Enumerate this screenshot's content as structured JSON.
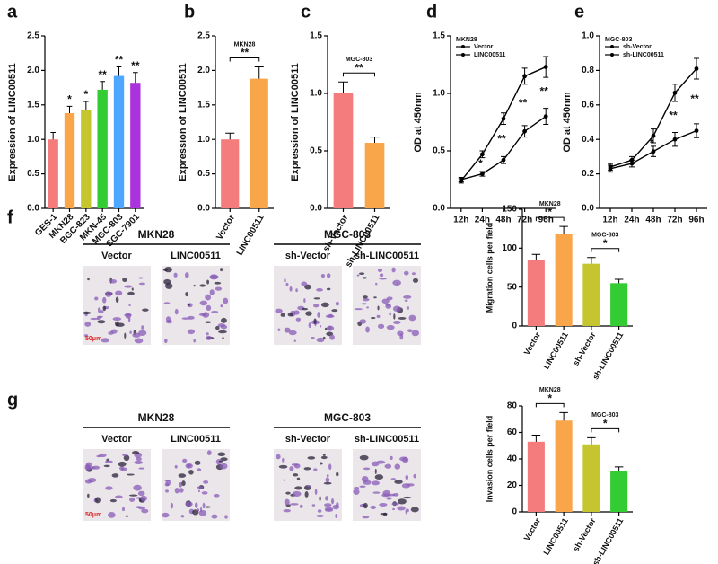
{
  "chart_data": [
    {
      "type": "bar",
      "label": "a",
      "ylabel": "Expression of LINC00511",
      "categories": [
        "GES-1",
        "MKN28",
        "BGC-823",
        "MKN-45",
        "MGC-803",
        "SGC-7901"
      ],
      "values": [
        1.0,
        1.38,
        1.43,
        1.72,
        1.92,
        1.82
      ],
      "errors": [
        0.1,
        0.1,
        0.12,
        0.12,
        0.13,
        0.15
      ],
      "colors": [
        "#f47c7c",
        "#f9a54a",
        "#c5c530",
        "#33cc33",
        "#4da6ff",
        "#aa33dd"
      ],
      "annotations": [
        null,
        "*",
        "*",
        "**",
        "**",
        "**"
      ],
      "ylim": [
        0,
        2.5
      ],
      "yticks": [
        {
          "value": 0,
          "label": "0.0"
        },
        0.5,
        {
          "value": 1,
          "label": "1.0"
        },
        1.5,
        {
          "value": 2,
          "label": "2.0"
        },
        2.5
      ]
    },
    {
      "type": "bar",
      "label": "b",
      "ylabel": "Expression of LINC00511",
      "categories": [
        "Vector",
        "LINC00511"
      ],
      "values": [
        1.0,
        1.88
      ],
      "errors": [
        0.09,
        0.17
      ],
      "colors": [
        "#f47c7c",
        "#f9a54a"
      ],
      "brackets": [
        {
          "label": "MKN28",
          "mark": "**"
        }
      ],
      "ylim": [
        0,
        2.5
      ],
      "yticks": [
        {
          "value": 0,
          "label": "0.0"
        },
        0.5,
        {
          "value": 1,
          "label": "1.0"
        },
        1.5,
        {
          "value": 2,
          "label": "2.0"
        },
        2.5
      ]
    },
    {
      "type": "bar",
      "label": "c",
      "ylabel": "Expression of LINC00511",
      "categories": [
        "sh-Vector",
        "sh-LINC00511"
      ],
      "values": [
        1.0,
        0.57
      ],
      "errors": [
        0.1,
        0.05
      ],
      "colors": [
        "#f47c7c",
        "#f9a54a"
      ],
      "brackets": [
        {
          "label": "MGC-803",
          "mark": "**"
        }
      ],
      "ylim": [
        0,
        1.5
      ],
      "yticks": [
        {
          "value": 0,
          "label": "0.0"
        },
        0.5,
        {
          "value": 1,
          "label": "1.0"
        },
        1.5
      ]
    },
    {
      "type": "line",
      "label": "d",
      "ylabel": "OD at 450nm",
      "legend_title": "MKN28",
      "categories": [
        "12h",
        "24h",
        "48h",
        "72h",
        "96h"
      ],
      "series": [
        {
          "name": "Vector",
          "color": "#000000",
          "values": [
            0.25,
            0.3,
            0.42,
            0.67,
            0.8
          ],
          "errors": [
            0.02,
            0.02,
            0.03,
            0.05,
            0.07
          ]
        },
        {
          "name": "LINC00511",
          "color": "#000000",
          "values": [
            0.24,
            0.47,
            0.78,
            1.15,
            1.23
          ],
          "errors": [
            0.02,
            0.03,
            0.05,
            0.07,
            0.09
          ]
        }
      ],
      "annotations": [
        null,
        "*",
        "**",
        "**",
        "**"
      ],
      "ylim": [
        0,
        1.5
      ],
      "yticks": [
        {
          "value": 0,
          "label": "0.0"
        },
        0.5,
        {
          "value": 1,
          "label": "1.0"
        },
        1.5
      ]
    },
    {
      "type": "line",
      "label": "e",
      "ylabel": "OD at 450nm",
      "legend_title": "MGC-803",
      "categories": [
        "12h",
        "24h",
        "48h",
        "72h",
        "96h"
      ],
      "series": [
        {
          "name": "sh-Vector",
          "color": "#000000",
          "values": [
            0.24,
            0.28,
            0.42,
            0.67,
            0.81
          ],
          "errors": [
            0.02,
            0.02,
            0.04,
            0.05,
            0.06
          ]
        },
        {
          "name": "sh-LINC00511",
          "color": "#000000",
          "values": [
            0.23,
            0.26,
            0.33,
            0.4,
            0.45
          ],
          "errors": [
            0.02,
            0.02,
            0.03,
            0.04,
            0.04
          ]
        }
      ],
      "annotations": [
        null,
        null,
        "*",
        "**",
        "**"
      ],
      "ylim": [
        0,
        1.0
      ],
      "yticks": [
        {
          "value": 0,
          "label": "0.0"
        },
        0.2,
        0.4,
        0.6,
        0.8,
        {
          "value": 1,
          "label": "1.0"
        }
      ]
    },
    {
      "type": "bar",
      "ylabel": "Migration cells per field",
      "categories": [
        "Vector",
        "LINC00511",
        "sh-Vector",
        "sh-LINC00511"
      ],
      "values": [
        85,
        118,
        80,
        55
      ],
      "errors": [
        7,
        10,
        8,
        5
      ],
      "colors": [
        "#f47c7c",
        "#f9a54a",
        "#c5c530",
        "#33cc33"
      ],
      "brackets": [
        {
          "label": "MKN28",
          "mark": "*"
        },
        {
          "label": "MGC-803",
          "mark": "*"
        }
      ],
      "ylim": [
        0,
        150
      ],
      "yticks": [
        0,
        50,
        100,
        150
      ]
    },
    {
      "type": "bar",
      "ylabel": "Invasion cells per field",
      "categories": [
        "Vector",
        "LINC00511",
        "sh-Vector",
        "sh-LINC00511"
      ],
      "values": [
        53,
        69,
        51,
        31
      ],
      "errors": [
        5,
        6,
        5,
        3
      ],
      "colors": [
        "#f47c7c",
        "#f9a54a",
        "#c5c530",
        "#33cc33"
      ],
      "brackets": [
        {
          "label": "MKN28",
          "mark": "*"
        },
        {
          "label": "MGC-803",
          "mark": "*"
        }
      ],
      "ylim": [
        0,
        80
      ],
      "yticks": [
        0,
        20,
        40,
        60,
        80
      ]
    }
  ],
  "images": [
    {
      "label": "f",
      "scale_bar": "50μm",
      "groups": [
        {
          "title": "MKN28",
          "panels": [
            "Vector",
            "LINC00511"
          ]
        },
        {
          "title": "MGC-803",
          "panels": [
            "sh-Vector",
            "sh-LINC00511"
          ]
        }
      ]
    },
    {
      "label": "g",
      "scale_bar": "50μm",
      "groups": [
        {
          "title": "MKN28",
          "panels": [
            "Vector",
            "LINC00511"
          ]
        },
        {
          "title": "MGC-803",
          "panels": [
            "sh-Vector",
            "sh-LINC00511"
          ]
        }
      ]
    }
  ]
}
